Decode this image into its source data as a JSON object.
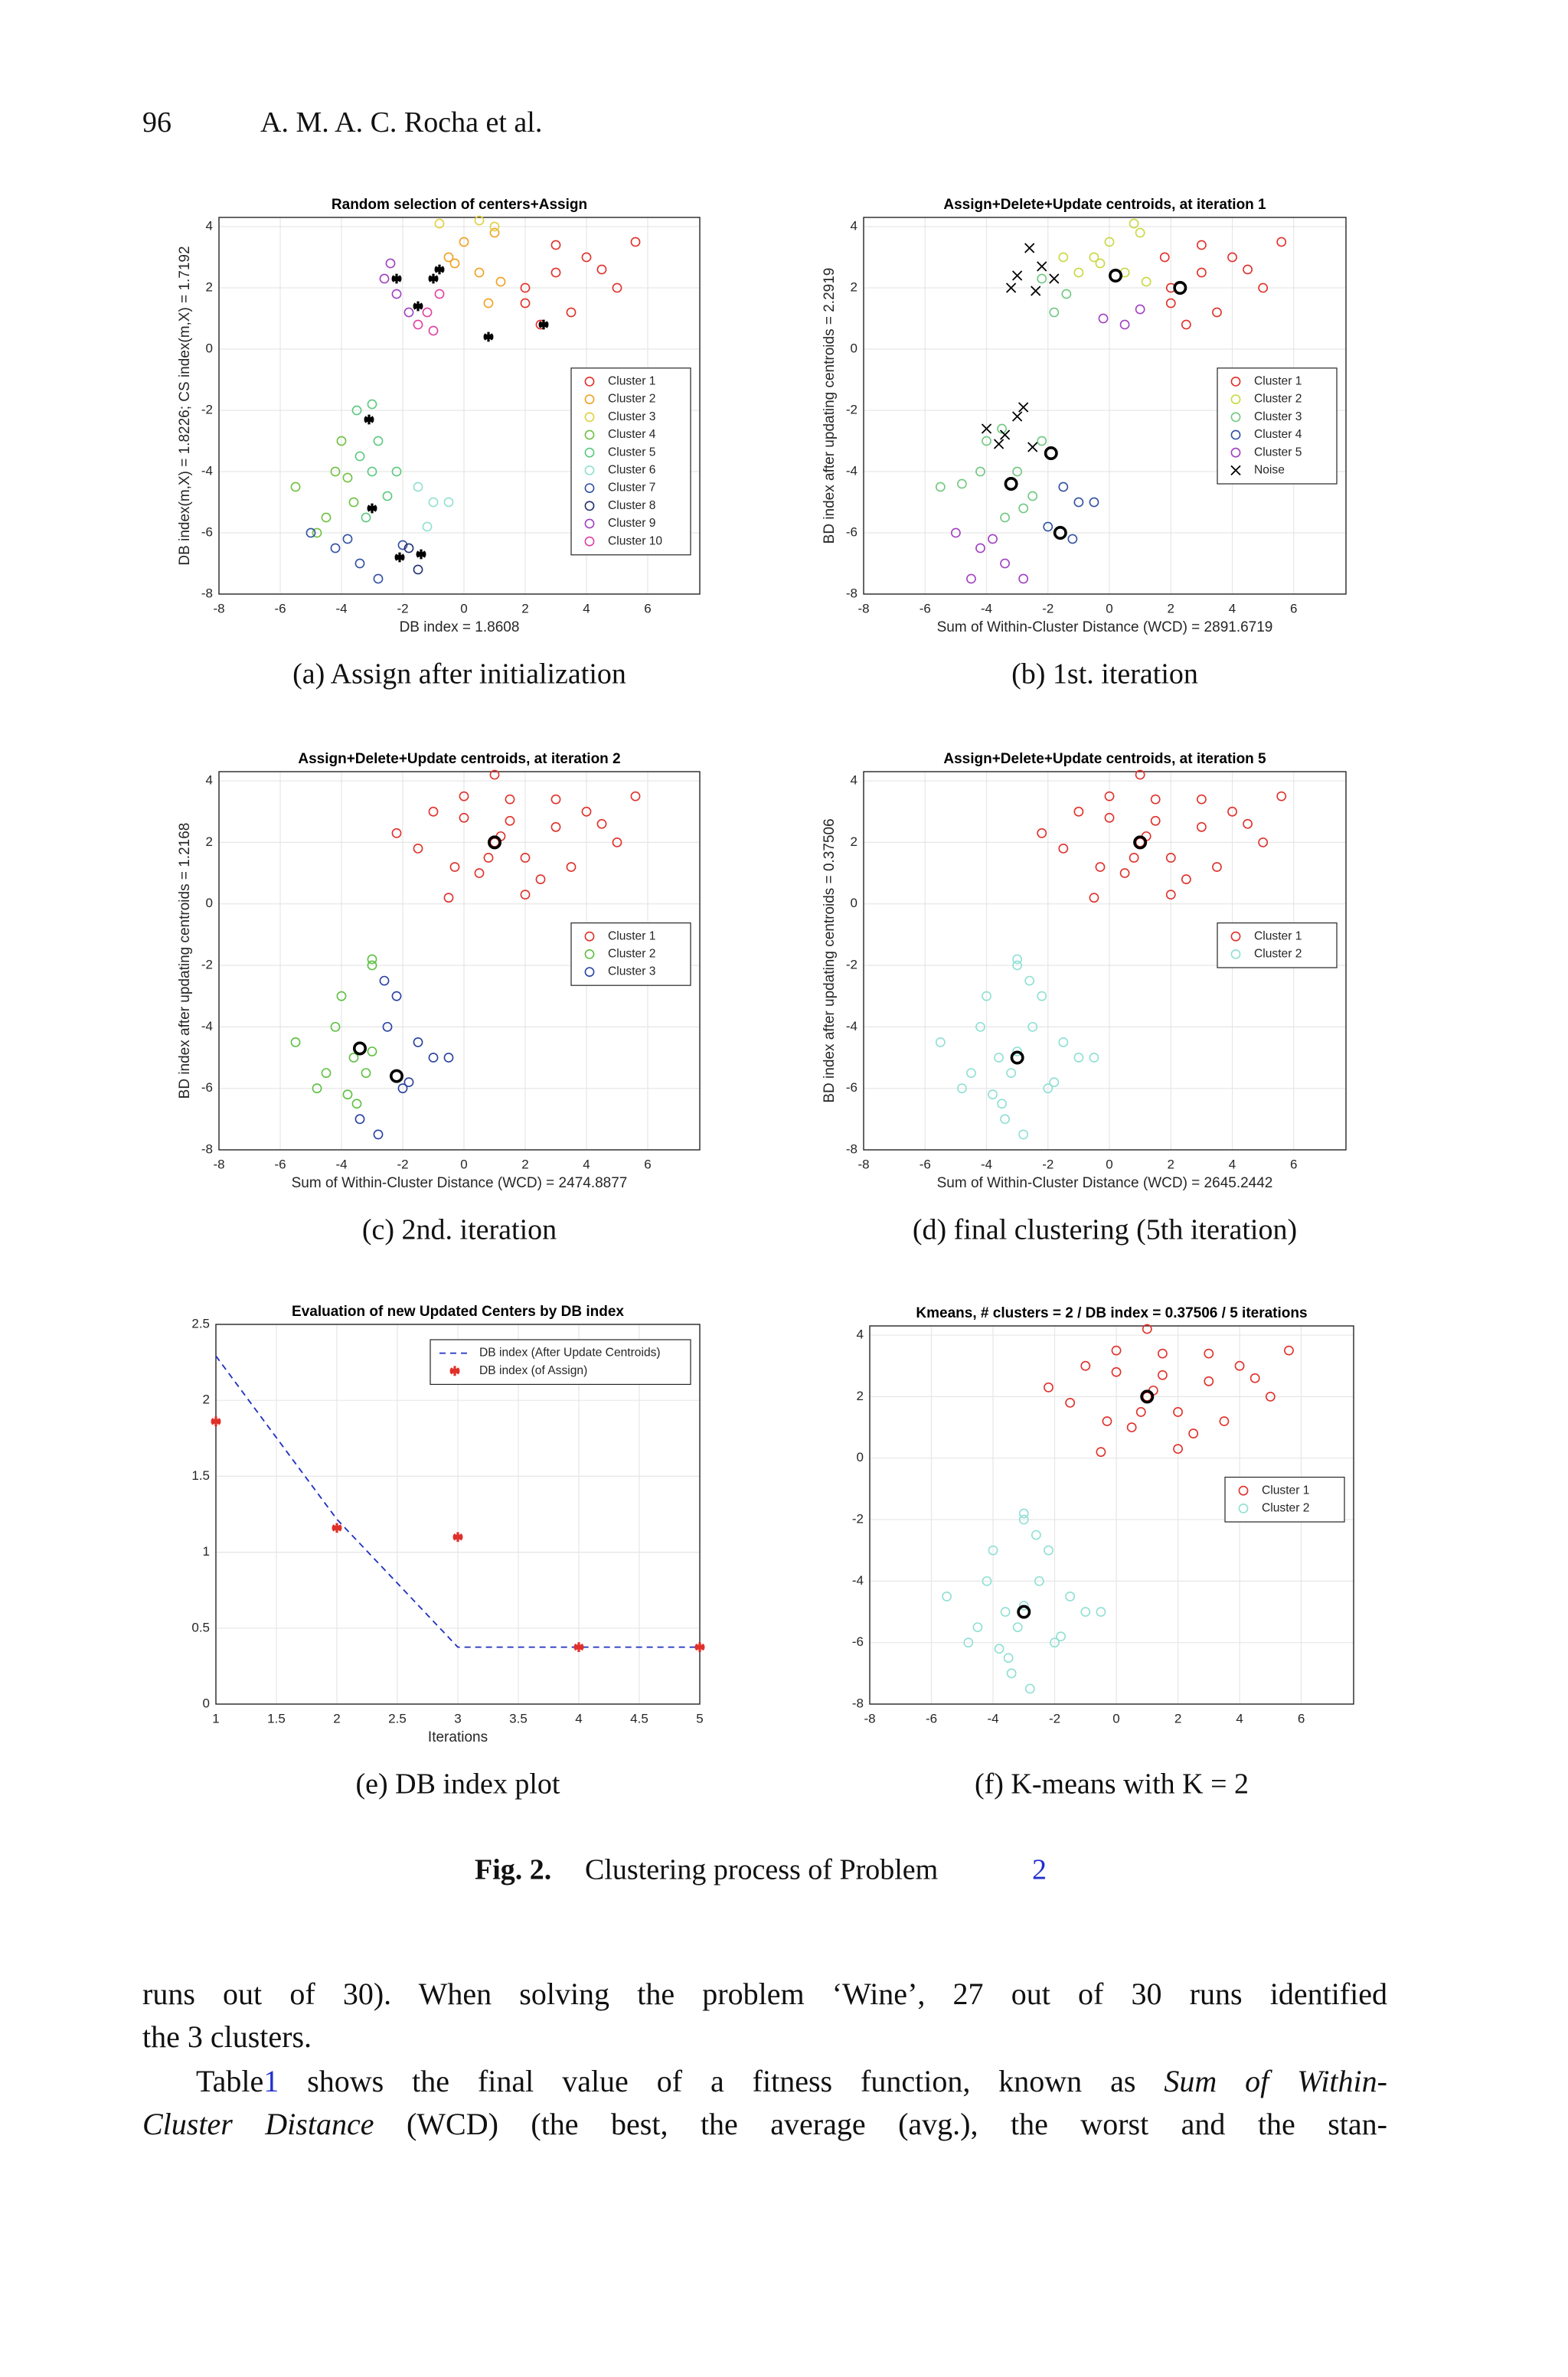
{
  "header": {
    "page": "96",
    "authors": "A. M. A. C. Rocha et al."
  },
  "chart_data": [
    {
      "type": "scatter",
      "title": "Random selection of centers+Assign",
      "xlabel": "DB index  = 1.8608",
      "ylabel": "DB index(m,X) = 1.8226; CS index(m,X) = 1.7192",
      "caption": "(a) Assign after initialization",
      "xlim": [
        -8,
        7.7
      ],
      "ylim": [
        -8,
        4.3
      ],
      "xticks": [
        -8,
        -6,
        -4,
        -2,
        0,
        2,
        4,
        6
      ],
      "yticks": [
        -8,
        -6,
        -4,
        -2,
        0,
        2,
        4
      ],
      "grid": true,
      "legend": "east",
      "series": [
        {
          "name": "Cluster 1",
          "color": "#e0302a",
          "marker": "o",
          "x": [
            2,
            3,
            4,
            5,
            2.5,
            3.5,
            4.5,
            5.6,
            3,
            2
          ],
          "y": [
            2,
            2.5,
            3,
            2,
            0.8,
            1.2,
            2.6,
            3.5,
            3.4,
            1.5
          ]
        },
        {
          "name": "Cluster 2",
          "color": "#f0a020",
          "marker": "o",
          "x": [
            -0.5,
            0,
            0.5,
            1,
            -0.3,
            1.2,
            0.8
          ],
          "y": [
            3,
            3.5,
            2.5,
            3.8,
            2.8,
            2.2,
            1.5
          ]
        },
        {
          "name": "Cluster 3",
          "color": "#e0d040",
          "marker": "o",
          "x": [
            -0.8,
            0.5,
            1
          ],
          "y": [
            4.1,
            4.2,
            4
          ]
        },
        {
          "name": "Cluster 4",
          "color": "#70c040",
          "marker": "o",
          "x": [
            -5.5,
            -4.5,
            -4,
            -4.8,
            -3.6,
            -4.2,
            -3.8
          ],
          "y": [
            -4.5,
            -5.5,
            -3,
            -6,
            -5,
            -4,
            -4.2
          ]
        },
        {
          "name": "Cluster 5",
          "color": "#5cc880",
          "marker": "o",
          "x": [
            -3.5,
            -3,
            -2.5,
            -3.2,
            -2.8,
            -3,
            -2.2,
            -3.4
          ],
          "y": [
            -2,
            -4,
            -4.8,
            -5.5,
            -3,
            -1.8,
            -4,
            -3.5
          ]
        },
        {
          "name": "Cluster 6",
          "color": "#90e0d0",
          "marker": "o",
          "x": [
            -1.5,
            -1,
            -0.5,
            -1.2
          ],
          "y": [
            -4.5,
            -5,
            -5,
            -5.8
          ]
        },
        {
          "name": "Cluster 7",
          "color": "#3050a0",
          "marker": "o",
          "x": [
            -4.2,
            -3.4,
            -2.8,
            -3.8,
            -2,
            -5
          ],
          "y": [
            -6.5,
            -7,
            -7.5,
            -6.2,
            -6.4,
            -6
          ]
        },
        {
          "name": "Cluster 8",
          "color": "#203070",
          "marker": "o",
          "x": [
            -1.8,
            -1.5
          ],
          "y": [
            -6.5,
            -7.2
          ]
        },
        {
          "name": "Cluster 9",
          "color": "#a040c0",
          "marker": "o",
          "x": [
            -2.6,
            -2.2,
            -1.8,
            -2.4
          ],
          "y": [
            2.3,
            1.8,
            1.2,
            2.8
          ]
        },
        {
          "name": "Cluster 10",
          "color": "#e040a0",
          "marker": "o",
          "x": [
            -1.2,
            -0.8,
            -1.5,
            -1
          ],
          "y": [
            1.2,
            1.8,
            0.8,
            0.6
          ]
        },
        {
          "color": "#000000",
          "marker": "*",
          "x": [
            -3.1,
            -3,
            -2.1,
            -1.4,
            -2.2,
            -1.5,
            -1,
            -0.8,
            0.8,
            2.6
          ],
          "y": [
            -2.3,
            -5.2,
            -6.8,
            -6.7,
            2.3,
            1.4,
            2.3,
            2.6,
            0.4,
            0.8
          ]
        }
      ]
    },
    {
      "type": "scatter",
      "title": "Assign+Delete+Update centroids, at iteration 1",
      "xlabel": "Sum of Within-Cluster Distance (WCD) = 2891.6719",
      "ylabel": "BD index after updating centroids = 2.2919",
      "caption": "(b) 1st. iteration",
      "xlim": [
        -8,
        7.7
      ],
      "ylim": [
        -8,
        4.3
      ],
      "xticks": [
        -8,
        -6,
        -4,
        -2,
        0,
        2,
        4,
        6
      ],
      "yticks": [
        -8,
        -6,
        -4,
        -2,
        0,
        2,
        4
      ],
      "grid": true,
      "legend": "east",
      "series": [
        {
          "name": "Cluster 1",
          "color": "#e0302a",
          "marker": "o",
          "x": [
            2,
            3,
            4,
            5,
            2.5,
            3.5,
            4.5,
            5.6,
            3,
            2,
            1.8
          ],
          "y": [
            2,
            2.5,
            3,
            2,
            0.8,
            1.2,
            2.6,
            3.5,
            3.4,
            1.5,
            3
          ]
        },
        {
          "name": "Cluster 2",
          "color": "#c8d840",
          "marker": "o",
          "x": [
            -0.5,
            0,
            0.5,
            1,
            -0.3,
            1.2,
            -1.5,
            0.8,
            -1
          ],
          "y": [
            3,
            3.5,
            2.5,
            3.8,
            2.8,
            2.2,
            3,
            4.1,
            2.5
          ]
        },
        {
          "name": "Cluster 3",
          "color": "#70c880",
          "marker": "o",
          "x": [
            -2.2,
            -1.8,
            -1.4,
            -4,
            -3.5,
            -3,
            -2.5,
            -4.8,
            -5.5,
            -2.8,
            -3.4,
            -4.2,
            -2.2
          ],
          "y": [
            2.3,
            1.2,
            1.8,
            -3,
            -2.6,
            -4,
            -4.8,
            -4.4,
            -4.5,
            -5.2,
            -5.5,
            -4,
            -3
          ]
        },
        {
          "name": "Cluster 4",
          "color": "#3050a0",
          "marker": "o",
          "x": [
            -1.5,
            -1,
            -0.5,
            -2,
            -1.2
          ],
          "y": [
            -4.5,
            -5,
            -5,
            -5.8,
            -6.2
          ]
        },
        {
          "name": "Cluster 5",
          "color": "#a040c0",
          "marker": "o",
          "x": [
            -0.2,
            0.5,
            1,
            -4.2,
            -3.4,
            -2.8,
            -3.8,
            -5,
            -4.5
          ],
          "y": [
            1,
            0.8,
            1.3,
            -6.5,
            -7,
            -7.5,
            -6.2,
            -6,
            -7.5
          ]
        },
        {
          "name": "Noise",
          "color": "#000000",
          "marker": "x",
          "x": [
            -3,
            -2.6,
            -2.2,
            -3.2,
            -2.4,
            -1.8,
            -4,
            -3.6,
            -3,
            -2.5,
            -3.4,
            -2.8
          ],
          "y": [
            2.4,
            3.3,
            2.7,
            2,
            1.9,
            2.3,
            -2.6,
            -3.1,
            -2.2,
            -3.2,
            -2.8,
            -1.9
          ]
        },
        {
          "color": "#000000",
          "marker": "O",
          "x": [
            0.2,
            2.3,
            -3.2,
            -1.6,
            -1.9
          ],
          "y": [
            2.4,
            2,
            -4.4,
            -6,
            -3.4
          ]
        }
      ]
    },
    {
      "type": "scatter",
      "title": "Assign+Delete+Update centroids, at iteration 2",
      "xlabel": "Sum of Within-Cluster Distance (WCD) = 2474.8877",
      "ylabel": "BD index after updating centroids = 1.2168",
      "caption": "(c) 2nd. iteration",
      "xlim": [
        -8,
        7.7
      ],
      "ylim": [
        -8,
        4.3
      ],
      "xticks": [
        -8,
        -6,
        -4,
        -2,
        0,
        2,
        4,
        6
      ],
      "yticks": [
        -8,
        -6,
        -4,
        -2,
        0,
        2,
        4
      ],
      "grid": true,
      "legend": "east",
      "series": [
        {
          "name": "Cluster 1",
          "color": "#e0302a",
          "marker": "o",
          "x": [
            -2.2,
            -1,
            0,
            0.5,
            1,
            1.5,
            2,
            3,
            4,
            5,
            -0.5,
            1,
            2.5,
            3.5,
            0,
            1.5,
            -1.5,
            4.5,
            2,
            0.8,
            3,
            -0.3,
            5.6,
            1.2
          ],
          "y": [
            2.3,
            3,
            3.5,
            1,
            2,
            2.7,
            1.5,
            2.5,
            3,
            2,
            0.2,
            4.2,
            0.8,
            1.2,
            2.8,
            3.4,
            1.8,
            2.6,
            0.3,
            1.5,
            3.4,
            1.2,
            3.5,
            2.2
          ]
        },
        {
          "name": "Cluster 2",
          "color": "#5cc040",
          "marker": "o",
          "x": [
            -5.5,
            -4.5,
            -4,
            -3.5,
            -3,
            -3.2,
            -4.2,
            -3.6,
            -3,
            -4.8,
            -3.8,
            -3
          ],
          "y": [
            -4.5,
            -5.5,
            -3,
            -6.5,
            -2,
            -5.5,
            -4,
            -5,
            -4.8,
            -6,
            -6.2,
            -1.8
          ]
        },
        {
          "name": "Cluster 3",
          "color": "#2840a0",
          "marker": "o",
          "x": [
            -2.5,
            -2,
            -1.5,
            -1,
            -2.8,
            -2.2,
            -1.8,
            -3.4,
            -0.5,
            -2.6
          ],
          "y": [
            -4,
            -6,
            -4.5,
            -5,
            -7.5,
            -3,
            -5.8,
            -7,
            -5,
            -2.5
          ]
        },
        {
          "color": "#000000",
          "marker": "O",
          "x": [
            1,
            -3.4,
            -2.2
          ],
          "y": [
            2,
            -4.7,
            -5.6
          ]
        }
      ]
    },
    {
      "type": "scatter",
      "title": "Assign+Delete+Update centroids, at iteration 5",
      "xlabel": "Sum of Within-Cluster Distance (WCD) = 2645.2442",
      "ylabel": "BD index after updating centroids = 0.37506",
      "caption": "(d) final clustering (5th iteration)",
      "xlim": [
        -8,
        7.7
      ],
      "ylim": [
        -8,
        4.3
      ],
      "xticks": [
        -8,
        -6,
        -4,
        -2,
        0,
        2,
        4,
        6
      ],
      "yticks": [
        -8,
        -6,
        -4,
        -2,
        0,
        2,
        4
      ],
      "grid": true,
      "legend": "east",
      "series": [
        {
          "name": "Cluster 1",
          "color": "#e0302a",
          "marker": "o",
          "x": [
            -2.2,
            -1,
            0,
            0.5,
            1,
            1.5,
            2,
            3,
            4,
            5,
            -0.5,
            1,
            2.5,
            3.5,
            0,
            1.5,
            -1.5,
            4.5,
            2,
            0.8,
            3,
            -0.3,
            5.6,
            1.2
          ],
          "y": [
            2.3,
            3,
            3.5,
            1,
            2,
            2.7,
            1.5,
            2.5,
            3,
            2,
            0.2,
            4.2,
            0.8,
            1.2,
            2.8,
            3.4,
            1.8,
            2.6,
            0.3,
            1.5,
            3.4,
            1.2,
            3.5,
            2.2
          ]
        },
        {
          "name": "Cluster 2",
          "color": "#8fe0d4",
          "marker": "o",
          "x": [
            -5.5,
            -4.5,
            -4,
            -3.5,
            -3,
            -2.5,
            -2,
            -1.5,
            -1,
            -3.2,
            -4.2,
            -2.8,
            -3.6,
            -2.2,
            -3,
            -4.8,
            -1.8,
            -3.4,
            -0.5,
            -3.8,
            -2.6,
            -3
          ],
          "y": [
            -4.5,
            -5.5,
            -3,
            -6.5,
            -2,
            -4,
            -6,
            -4.5,
            -5,
            -5.5,
            -4,
            -7.5,
            -5,
            -3,
            -4.8,
            -6,
            -5.8,
            -7,
            -5,
            -6.2,
            -2.5,
            -1.8
          ]
        },
        {
          "color": "#000000",
          "marker": "O",
          "x": [
            1,
            -3
          ],
          "y": [
            2,
            -5
          ]
        }
      ]
    },
    {
      "type": "line",
      "title": "Evaluation of new Updated Centers by DB index",
      "xlabel": "Iterations",
      "caption": "(e) DB index plot",
      "xlim": [
        1,
        5
      ],
      "ylim": [
        0,
        2.5
      ],
      "xticks": [
        1,
        1.5,
        2,
        2.5,
        3,
        3.5,
        4,
        4.5,
        5
      ],
      "yticks": [
        0,
        0.5,
        1,
        1.5,
        2,
        2.5
      ],
      "grid": true,
      "legend": "northeast",
      "series": [
        {
          "name": "DB index (After Update Centroids)",
          "color": "#2030c0",
          "linestyle": "dashed",
          "x": [
            1,
            2,
            3,
            4,
            5
          ],
          "values": [
            2.2919,
            1.2168,
            0.37506,
            0.37506,
            0.37506
          ]
        },
        {
          "name": "DB index (of Assign)",
          "color": "#e0302a",
          "marker": "*",
          "x": [
            1,
            2,
            3,
            4,
            5
          ],
          "values": [
            1.8608,
            1.16,
            1.1,
            0.37506,
            0.37506
          ]
        }
      ]
    },
    {
      "type": "scatter",
      "title": "Kmeans, # clusters = 2 / DB index = 0.37506 / 5 iterations",
      "caption": "(f) K-means with K = 2",
      "xlim": [
        -8,
        7.7
      ],
      "ylim": [
        -8,
        4.3
      ],
      "xticks": [
        -8,
        -6,
        -4,
        -2,
        0,
        2,
        4,
        6
      ],
      "yticks": [
        -8,
        -6,
        -4,
        -2,
        0,
        2,
        4
      ],
      "grid": true,
      "legend": "east",
      "series": [
        {
          "name": "Cluster 1",
          "color": "#e0302a",
          "marker": "o",
          "x": [
            -2.2,
            -1,
            0,
            0.5,
            1,
            1.5,
            2,
            3,
            4,
            5,
            -0.5,
            1,
            2.5,
            3.5,
            0,
            1.5,
            -1.5,
            4.5,
            2,
            0.8,
            3,
            -0.3,
            5.6,
            1.2
          ],
          "y": [
            2.3,
            3,
            3.5,
            1,
            2,
            2.7,
            1.5,
            2.5,
            3,
            2,
            0.2,
            4.2,
            0.8,
            1.2,
            2.8,
            3.4,
            1.8,
            2.6,
            0.3,
            1.5,
            3.4,
            1.2,
            3.5,
            2.2
          ]
        },
        {
          "name": "Cluster 2",
          "color": "#8fe0d4",
          "marker": "o",
          "x": [
            -5.5,
            -4.5,
            -4,
            -3.5,
            -3,
            -2.5,
            -2,
            -1.5,
            -1,
            -3.2,
            -4.2,
            -2.8,
            -3.6,
            -2.2,
            -3,
            -4.8,
            -1.8,
            -3.4,
            -0.5,
            -3.8,
            -2.6,
            -3
          ],
          "y": [
            -4.5,
            -5.5,
            -3,
            -6.5,
            -2,
            -4,
            -6,
            -4.5,
            -5,
            -5.5,
            -4,
            -7.5,
            -5,
            -3,
            -4.8,
            -6,
            -5.8,
            -7,
            -5,
            -6.2,
            -2.5,
            -1.8
          ]
        },
        {
          "color": "#000000",
          "marker": "O",
          "x": [
            1,
            -3
          ],
          "y": [
            2,
            -5
          ]
        }
      ]
    }
  ],
  "figure_caption": {
    "label": "Fig. 2.",
    "text": "Clustering process of Problem ",
    "ref": "2"
  },
  "body": {
    "line1": "runs out of 30). When solving the problem ‘Wine’, 27 out of 30 runs identified",
    "line2": "the 3 clusters.",
    "line3a": "Table",
    "line3ref": "1",
    "line3b": " shows the final value of a fitness function, known as ",
    "line3c": "Sum of Within-",
    "line4a": "Cluster Distance",
    "line4b": " (WCD) (the best, the average (avg.), the worst and the stan-"
  }
}
